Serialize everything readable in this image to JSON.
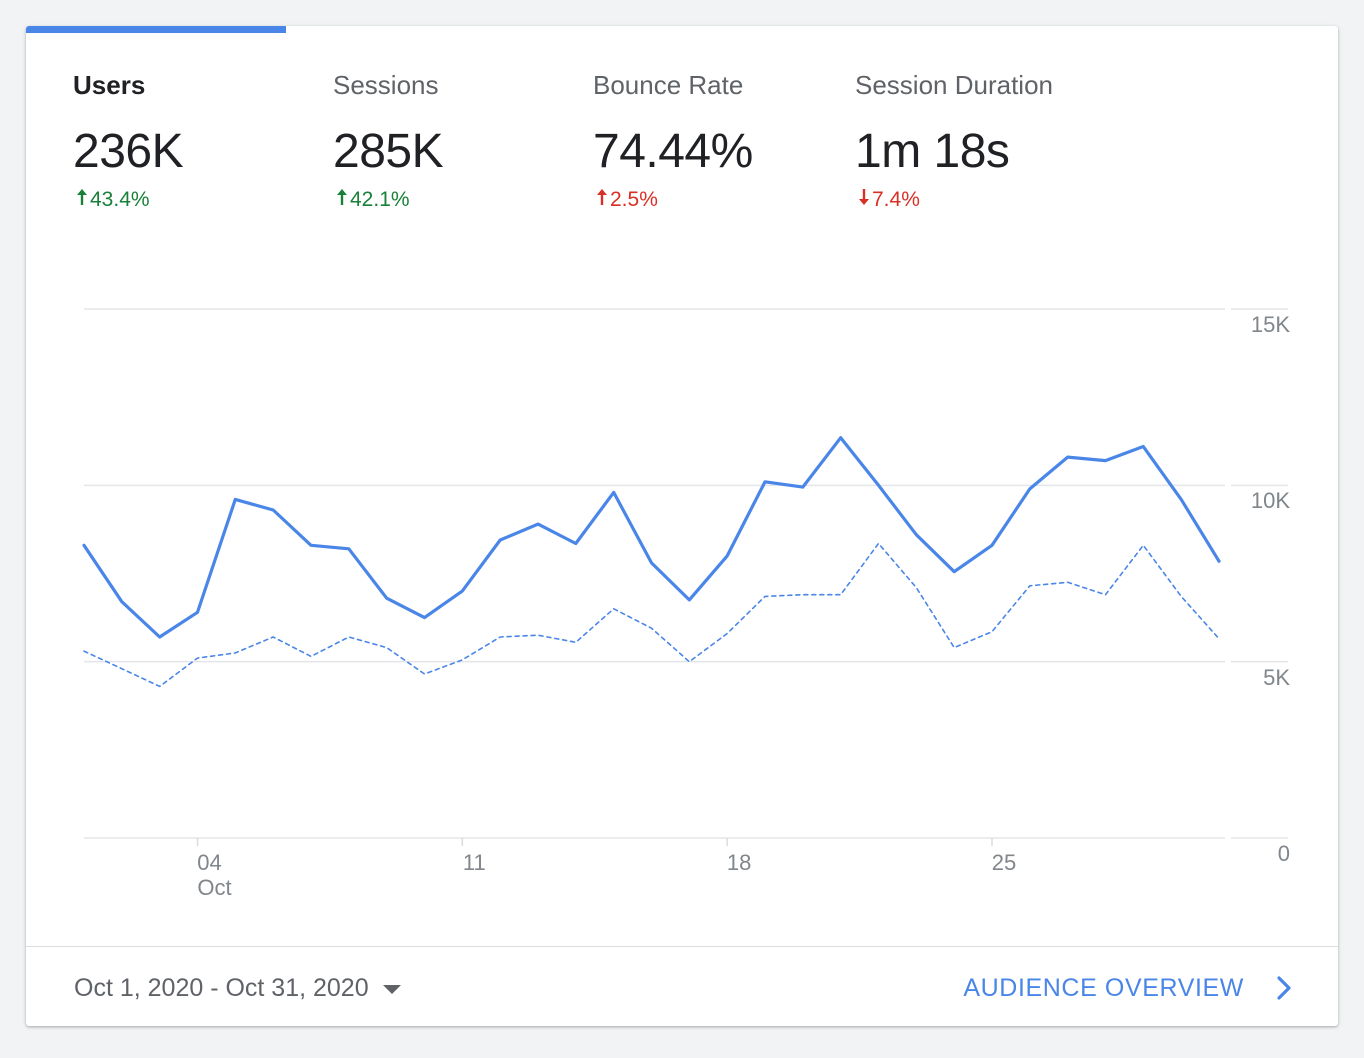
{
  "tabs": [
    {
      "label": "Users",
      "value": "236K",
      "delta": "43.4%",
      "direction": "up",
      "tone": "good",
      "active": true
    },
    {
      "label": "Sessions",
      "value": "285K",
      "delta": "42.1%",
      "direction": "up",
      "tone": "good",
      "active": false
    },
    {
      "label": "Bounce Rate",
      "value": "74.44%",
      "delta": "2.5%",
      "direction": "up",
      "tone": "bad",
      "active": false
    },
    {
      "label": "Session Duration",
      "value": "1m 18s",
      "delta": "7.4%",
      "direction": "down",
      "tone": "bad",
      "active": false
    }
  ],
  "chart_data": {
    "type": "line",
    "x": [
      1,
      2,
      3,
      4,
      5,
      6,
      7,
      8,
      9,
      10,
      11,
      12,
      13,
      14,
      15,
      16,
      17,
      18,
      19,
      20,
      21,
      22,
      23,
      24,
      25,
      26,
      27,
      28,
      29,
      30,
      31
    ],
    "series": [
      {
        "style": "solid",
        "color": "#4a86e8",
        "values": [
          8300,
          6700,
          5700,
          6400,
          9600,
          9300,
          8300,
          8200,
          6800,
          6250,
          7000,
          8450,
          8900,
          8350,
          9800,
          7800,
          6750,
          8000,
          10100,
          9950,
          11350,
          10000,
          8600,
          7550,
          8300,
          9900,
          10800,
          10700,
          11100,
          9600,
          7850
        ]
      },
      {
        "style": "dashed",
        "color": "#4a86e8",
        "values": [
          5300,
          4800,
          4300,
          5100,
          5250,
          5700,
          5150,
          5700,
          5400,
          4650,
          5050,
          5700,
          5750,
          5550,
          6500,
          5950,
          5000,
          5800,
          6850,
          6900,
          6900,
          8350,
          7100,
          5400,
          5850,
          7150,
          7250,
          6900,
          8300,
          6850,
          5650
        ]
      }
    ],
    "x_ticks": [
      {
        "day": 4,
        "label": "04",
        "sublabel": "Oct"
      },
      {
        "day": 11,
        "label": "11",
        "sublabel": ""
      },
      {
        "day": 18,
        "label": "18",
        "sublabel": ""
      },
      {
        "day": 25,
        "label": "25",
        "sublabel": ""
      }
    ],
    "y_ticks": [
      {
        "value": 15000,
        "label": "15K"
      },
      {
        "value": 10000,
        "label": "10K"
      },
      {
        "value": 5000,
        "label": "5K"
      },
      {
        "value": 0,
        "label": "0"
      }
    ],
    "ylim": [
      0,
      15000
    ],
    "xlim": [
      1,
      31
    ],
    "grid": true
  },
  "footer": {
    "date_range": "Oct 1, 2020 - Oct 31, 2020",
    "link_label": "AUDIENCE OVERVIEW"
  },
  "colors": {
    "accent": "#4a86e8",
    "good": "#188038",
    "bad": "#d93025"
  },
  "icons": {
    "date_dropdown": "caret-down-icon",
    "link": "chevron-right-icon"
  }
}
